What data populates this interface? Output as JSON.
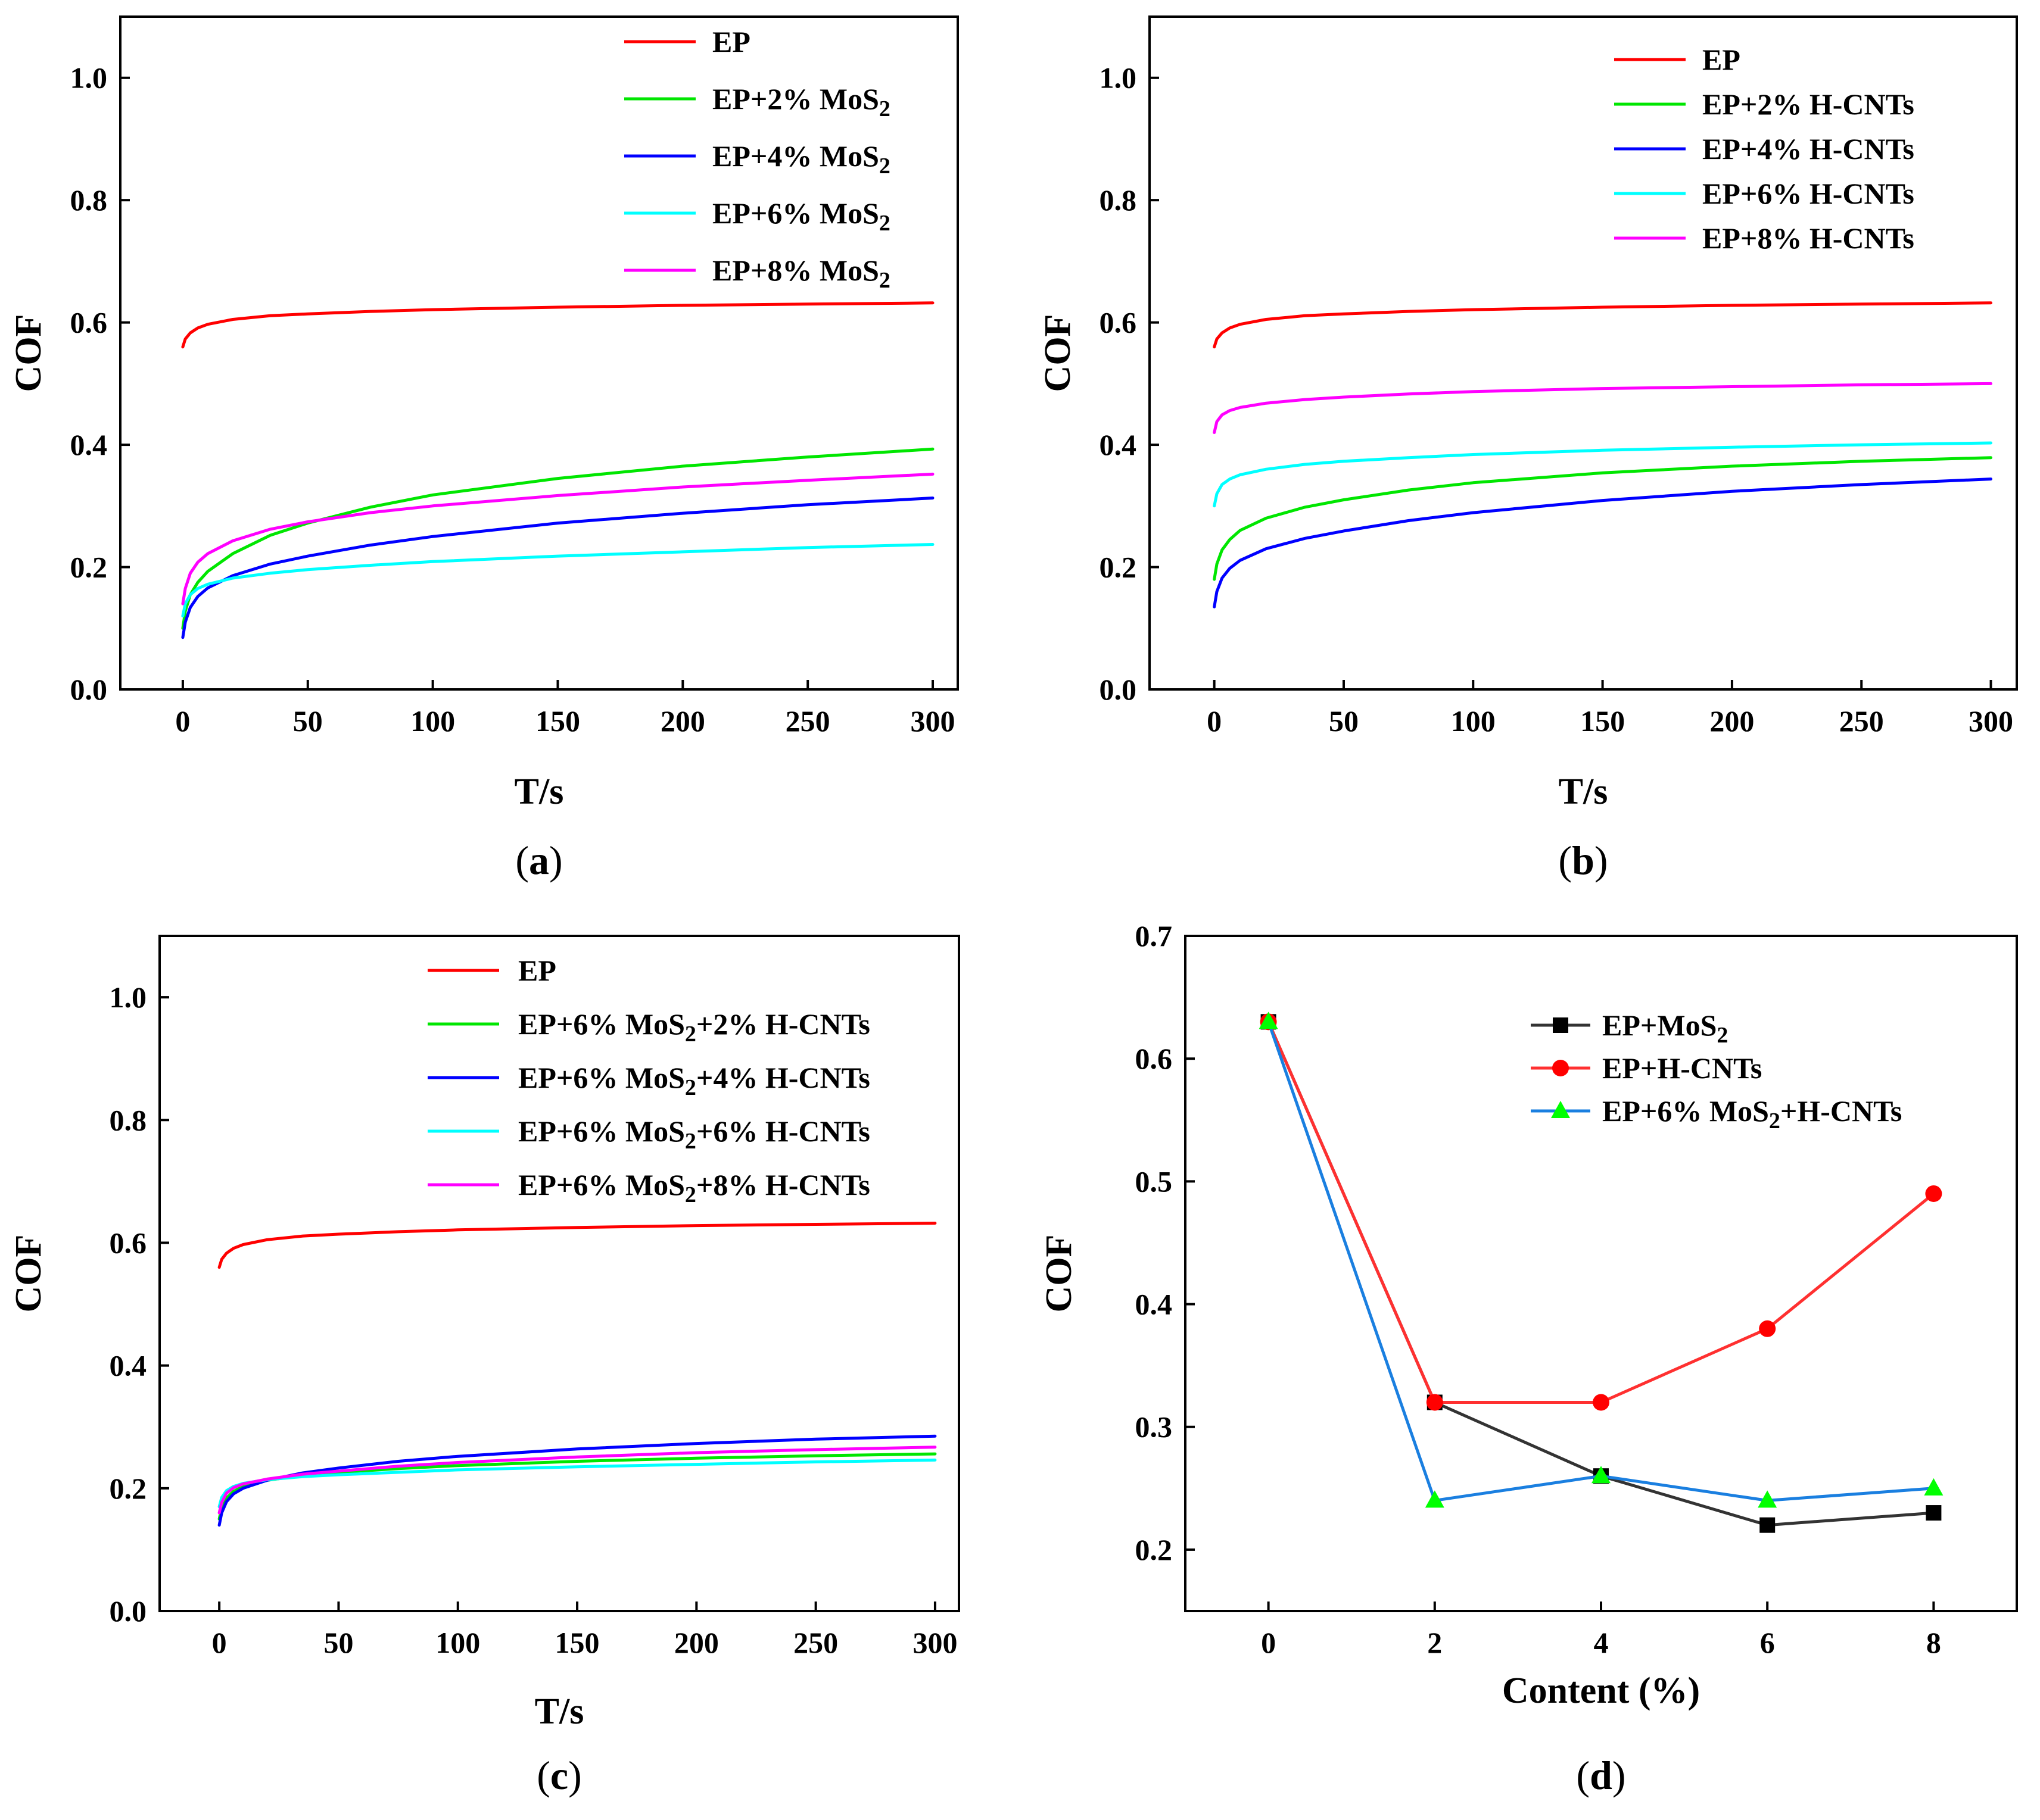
{
  "chart_data": [
    {
      "panel": "a",
      "panel_label": "a",
      "type": "line",
      "xlabel": "T/s",
      "ylabel": "COF",
      "xlim": [
        -25,
        310
      ],
      "ylim": [
        0,
        1.1
      ],
      "xticks": [
        0,
        50,
        100,
        150,
        200,
        250,
        300
      ],
      "yticks": [
        0.0,
        0.2,
        0.4,
        0.6,
        0.8,
        1.0
      ],
      "legend_position": "top-right",
      "series": [
        {
          "name": "EP",
          "name_parts": [
            "EP"
          ],
          "color": "#ff0000",
          "x": [
            0,
            1,
            3,
            6,
            10,
            20,
            35,
            50,
            75,
            100,
            150,
            200,
            250,
            300
          ],
          "values": [
            0.56,
            0.573,
            0.583,
            0.591,
            0.597,
            0.605,
            0.611,
            0.614,
            0.618,
            0.621,
            0.625,
            0.628,
            0.63,
            0.632
          ]
        },
        {
          "name": "EP+2% MoS2",
          "name_parts": [
            "EP+2% MoS",
            "2",
            ""
          ],
          "color": "#00e600",
          "x": [
            0,
            1,
            3,
            6,
            10,
            20,
            35,
            50,
            75,
            100,
            150,
            200,
            250,
            300
          ],
          "values": [
            0.1,
            0.128,
            0.155,
            0.175,
            0.193,
            0.222,
            0.252,
            0.272,
            0.298,
            0.318,
            0.345,
            0.365,
            0.38,
            0.393
          ]
        },
        {
          "name": "EP+4% MoS2",
          "name_parts": [
            "EP+4% MoS",
            "2",
            ""
          ],
          "color": "#0000ff",
          "x": [
            0,
            1,
            3,
            6,
            10,
            20,
            35,
            50,
            75,
            100,
            150,
            200,
            250,
            300
          ],
          "values": [
            0.085,
            0.11,
            0.134,
            0.152,
            0.166,
            0.186,
            0.205,
            0.218,
            0.236,
            0.25,
            0.272,
            0.288,
            0.302,
            0.313
          ]
        },
        {
          "name": "EP+6% MoS2",
          "name_parts": [
            "EP+6% MoS",
            "2",
            ""
          ],
          "color": "#00ffff",
          "x": [
            0,
            1,
            3,
            6,
            10,
            20,
            35,
            50,
            75,
            100,
            150,
            200,
            250,
            300
          ],
          "values": [
            0.12,
            0.14,
            0.155,
            0.165,
            0.172,
            0.182,
            0.19,
            0.196,
            0.203,
            0.209,
            0.218,
            0.225,
            0.232,
            0.237
          ]
        },
        {
          "name": "EP+8% MoS2",
          "name_parts": [
            "EP+8% MoS",
            "2",
            ""
          ],
          "color": "#ff00ff",
          "x": [
            0,
            1,
            3,
            6,
            10,
            20,
            35,
            50,
            75,
            100,
            150,
            200,
            250,
            300
          ],
          "values": [
            0.14,
            0.165,
            0.19,
            0.208,
            0.222,
            0.243,
            0.262,
            0.274,
            0.289,
            0.3,
            0.317,
            0.331,
            0.342,
            0.352
          ]
        }
      ]
    },
    {
      "panel": "b",
      "panel_label": "b",
      "type": "line",
      "xlabel": "T/s",
      "ylabel": "COF",
      "xlim": [
        -25,
        310
      ],
      "ylim": [
        0,
        1.1
      ],
      "xticks": [
        0,
        50,
        100,
        150,
        200,
        250,
        300
      ],
      "yticks": [
        0.0,
        0.2,
        0.4,
        0.6,
        0.8,
        1.0
      ],
      "legend_position": "top-right",
      "series": [
        {
          "name": "EP",
          "name_parts": [
            "EP"
          ],
          "color": "#ff0000",
          "x": [
            0,
            1,
            3,
            6,
            10,
            20,
            35,
            50,
            75,
            100,
            150,
            200,
            250,
            300
          ],
          "values": [
            0.56,
            0.573,
            0.583,
            0.591,
            0.597,
            0.605,
            0.611,
            0.614,
            0.618,
            0.621,
            0.625,
            0.628,
            0.63,
            0.632
          ]
        },
        {
          "name": "EP+2% H-CNTs",
          "name_parts": [
            "EP+2% H-CNTs"
          ],
          "color": "#00e600",
          "x": [
            0,
            1,
            3,
            6,
            10,
            20,
            35,
            50,
            75,
            100,
            150,
            200,
            250,
            300
          ],
          "values": [
            0.18,
            0.205,
            0.228,
            0.245,
            0.26,
            0.28,
            0.298,
            0.31,
            0.326,
            0.338,
            0.354,
            0.365,
            0.373,
            0.379
          ]
        },
        {
          "name": "EP+4% H-CNTs",
          "name_parts": [
            "EP+4% H-CNTs"
          ],
          "color": "#0000ff",
          "x": [
            0,
            1,
            3,
            6,
            10,
            20,
            35,
            50,
            75,
            100,
            150,
            200,
            250,
            300
          ],
          "values": [
            0.135,
            0.16,
            0.182,
            0.198,
            0.211,
            0.23,
            0.247,
            0.259,
            0.276,
            0.289,
            0.309,
            0.324,
            0.335,
            0.344
          ]
        },
        {
          "name": "EP+6% H-CNTs",
          "name_parts": [
            "EP+6% H-CNTs"
          ],
          "color": "#00ffff",
          "x": [
            0,
            1,
            3,
            6,
            10,
            20,
            35,
            50,
            75,
            100,
            150,
            200,
            250,
            300
          ],
          "values": [
            0.3,
            0.32,
            0.335,
            0.344,
            0.351,
            0.36,
            0.368,
            0.373,
            0.379,
            0.384,
            0.391,
            0.396,
            0.4,
            0.403
          ]
        },
        {
          "name": "EP+8% H-CNTs",
          "name_parts": [
            "EP+8% H-CNTs"
          ],
          "color": "#ff00ff",
          "x": [
            0,
            1,
            3,
            6,
            10,
            20,
            35,
            50,
            75,
            100,
            150,
            200,
            250,
            300
          ],
          "values": [
            0.42,
            0.438,
            0.449,
            0.456,
            0.461,
            0.468,
            0.474,
            0.478,
            0.483,
            0.487,
            0.492,
            0.495,
            0.498,
            0.5
          ]
        }
      ]
    },
    {
      "panel": "c",
      "panel_label": "c",
      "type": "line",
      "xlabel": "T/s",
      "ylabel": "COF",
      "xlim": [
        -25,
        310
      ],
      "ylim": [
        0,
        1.1
      ],
      "xticks": [
        0,
        50,
        100,
        150,
        200,
        250,
        300
      ],
      "yticks": [
        0.0,
        0.2,
        0.4,
        0.6,
        0.8,
        1.0
      ],
      "legend_position": "top-right",
      "series": [
        {
          "name": "EP",
          "name_parts": [
            "EP"
          ],
          "color": "#ff0000",
          "x": [
            0,
            1,
            3,
            6,
            10,
            20,
            35,
            50,
            75,
            100,
            150,
            200,
            250,
            300
          ],
          "values": [
            0.56,
            0.573,
            0.583,
            0.591,
            0.597,
            0.605,
            0.611,
            0.614,
            0.618,
            0.621,
            0.625,
            0.628,
            0.63,
            0.632
          ]
        },
        {
          "name": "EP+6% MoS2+2% H-CNTs",
          "name_parts": [
            "EP+6% MoS",
            "2",
            "+2% H-CNTs"
          ],
          "color": "#00e600",
          "x": [
            0,
            1,
            3,
            6,
            10,
            20,
            35,
            50,
            75,
            100,
            150,
            200,
            250,
            300
          ],
          "values": [
            0.15,
            0.168,
            0.184,
            0.195,
            0.203,
            0.213,
            0.221,
            0.226,
            0.232,
            0.237,
            0.244,
            0.249,
            0.253,
            0.256
          ]
        },
        {
          "name": "EP+6% MoS2+4% H-CNTs",
          "name_parts": [
            "EP+6% MoS",
            "2",
            "+4% H-CNTs"
          ],
          "color": "#0000ff",
          "x": [
            0,
            1,
            3,
            6,
            10,
            20,
            35,
            50,
            75,
            100,
            150,
            200,
            250,
            300
          ],
          "values": [
            0.14,
            0.16,
            0.178,
            0.191,
            0.2,
            0.213,
            0.225,
            0.233,
            0.244,
            0.252,
            0.264,
            0.273,
            0.28,
            0.285
          ]
        },
        {
          "name": "EP+6% MoS2+6% H-CNTs",
          "name_parts": [
            "EP+6% MoS",
            "2",
            "+6% H-CNTs"
          ],
          "color": "#00ffff",
          "x": [
            0,
            1,
            3,
            6,
            10,
            20,
            35,
            50,
            75,
            100,
            150,
            200,
            250,
            300
          ],
          "values": [
            0.17,
            0.185,
            0.196,
            0.203,
            0.208,
            0.214,
            0.219,
            0.222,
            0.226,
            0.23,
            0.235,
            0.239,
            0.243,
            0.246
          ]
        },
        {
          "name": "EP+6% MoS2+8% H-CNTs",
          "name_parts": [
            "EP+6% MoS",
            "2",
            "+8% H-CNTs"
          ],
          "color": "#ff00ff",
          "x": [
            0,
            1,
            3,
            6,
            10,
            20,
            35,
            50,
            75,
            100,
            150,
            200,
            250,
            300
          ],
          "values": [
            0.16,
            0.177,
            0.192,
            0.201,
            0.207,
            0.215,
            0.223,
            0.228,
            0.236,
            0.242,
            0.251,
            0.258,
            0.263,
            0.267
          ]
        }
      ]
    },
    {
      "panel": "d",
      "panel_label": "d",
      "type": "line",
      "xlabel": "Content (%)",
      "ylabel": "COF",
      "xlim": [
        -1,
        9
      ],
      "ylim": [
        0.15,
        0.7
      ],
      "xticks": [
        0,
        2,
        4,
        6,
        8
      ],
      "yticks": [
        0.2,
        0.3,
        0.4,
        0.5,
        0.6,
        0.7
      ],
      "categories": [
        0,
        2,
        4,
        6,
        8
      ],
      "legend_position": "top-right",
      "series": [
        {
          "name": "EP+MoS2",
          "name_parts": [
            "EP+MoS",
            "2",
            ""
          ],
          "color": "#000000",
          "line_color": "#333333",
          "marker": "square",
          "x": [
            0,
            2,
            4,
            6,
            8
          ],
          "values": [
            0.63,
            0.32,
            0.26,
            0.22,
            0.23
          ]
        },
        {
          "name": "EP+H-CNTs",
          "name_parts": [
            "EP+H-CNTs"
          ],
          "color": "#ff0000",
          "line_color": "#ff3030",
          "marker": "circle",
          "x": [
            0,
            2,
            4,
            6,
            8
          ],
          "values": [
            0.63,
            0.32,
            0.32,
            0.38,
            0.49
          ]
        },
        {
          "name": "EP+6% MoS2+H-CNTs",
          "name_parts": [
            "EP+6% MoS",
            "2",
            "+H-CNTs"
          ],
          "color": "#00ff00",
          "line_color": "#1a7fe0",
          "marker": "triangle",
          "x": [
            0,
            2,
            4,
            6,
            8
          ],
          "values": [
            0.63,
            0.24,
            0.26,
            0.24,
            0.25
          ]
        }
      ]
    }
  ]
}
